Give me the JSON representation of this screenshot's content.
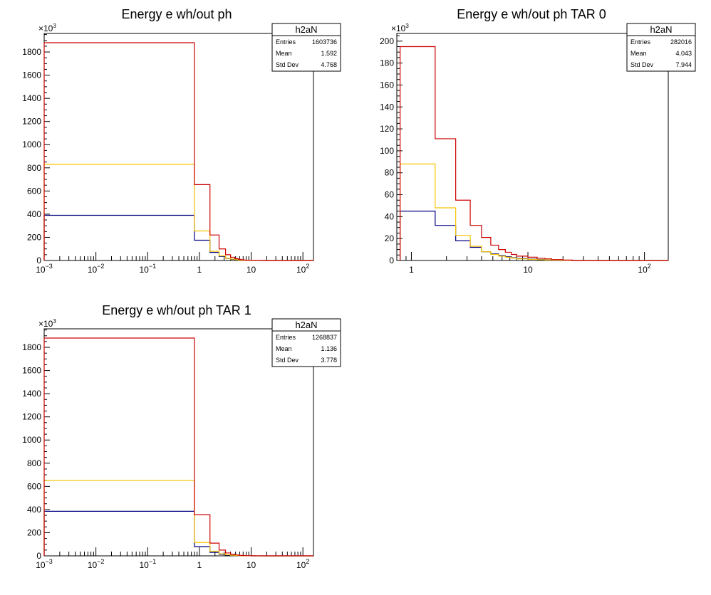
{
  "chart_data": [
    {
      "type": "step-histogram",
      "title": "Energy e wh/out ph",
      "x_scale": "log",
      "xlim": [
        0.001,
        160
      ],
      "ylim": [
        0,
        1960000
      ],
      "y_exponent_label": "×10",
      "y_exponent_power": "3",
      "y_ticks": [
        0,
        200,
        400,
        600,
        800,
        1000,
        1200,
        1400,
        1600,
        1800
      ],
      "x_ticks": [
        {
          "value": 0.001,
          "base": "10",
          "exp": "−3"
        },
        {
          "value": 0.01,
          "base": "10",
          "exp": "−2"
        },
        {
          "value": 0.1,
          "base": "10",
          "exp": "−1"
        },
        {
          "value": 1,
          "base": "1",
          "exp": ""
        },
        {
          "value": 10,
          "base": "10",
          "exp": ""
        },
        {
          "value": 100,
          "base": "10",
          "exp": "2"
        }
      ],
      "stats": {
        "name": "h2aN",
        "rows": [
          {
            "label": "Entries",
            "value": "1603736"
          },
          {
            "label": "Mean",
            "value": "1.592"
          },
          {
            "label": "Std Dev",
            "value": "4.768"
          }
        ]
      },
      "series": [
        {
          "color": "#cc0000",
          "edges": [
            0.001,
            0.8,
            1.6,
            2.4,
            3.2,
            4,
            4.8,
            5.6,
            6.4,
            7.2,
            8,
            10,
            12,
            14,
            16,
            160
          ],
          "values": [
            1880000,
            655000,
            220000,
            100000,
            50000,
            28000,
            16000,
            10000,
            6000,
            4000,
            2500,
            1500,
            1000,
            500,
            0
          ]
        },
        {
          "color": "#f5c400",
          "edges": [
            0.001,
            0.8,
            1.6,
            2.4,
            3.2,
            4,
            4.8,
            5.6,
            6.4,
            7.2,
            8,
            10,
            12,
            14,
            16,
            160
          ],
          "values": [
            830000,
            255000,
            80000,
            40000,
            20000,
            12000,
            7000,
            4000,
            2500,
            1500,
            1000,
            600,
            400,
            200,
            0
          ]
        },
        {
          "color": "#000080",
          "edges": [
            0.001,
            0.8,
            1.6,
            2.4,
            3.2,
            4,
            4.8,
            5.6,
            6.4,
            7.2,
            8,
            10,
            12,
            14,
            16,
            160
          ],
          "values": [
            390000,
            175000,
            70000,
            35000,
            18000,
            10000,
            6000,
            3500,
            2000,
            1200,
            800,
            500,
            300,
            150,
            0
          ]
        }
      ]
    },
    {
      "type": "step-histogram",
      "title": "Energy e wh/out ph TAR 0",
      "x_scale": "log",
      "xlim": [
        0.75,
        160
      ],
      "ylim": [
        0,
        207000
      ],
      "y_exponent_label": "×10",
      "y_exponent_power": "3",
      "y_ticks": [
        0,
        20,
        40,
        60,
        80,
        100,
        120,
        140,
        160,
        180,
        200
      ],
      "x_ticks": [
        {
          "value": 1,
          "base": "1",
          "exp": ""
        },
        {
          "value": 10,
          "base": "10",
          "exp": ""
        },
        {
          "value": 100,
          "base": "10",
          "exp": "2"
        }
      ],
      "stats": {
        "name": "h2aN",
        "rows": [
          {
            "label": "Entries",
            "value": "282016"
          },
          {
            "label": "Mean",
            "value": "4.043"
          },
          {
            "label": "Std Dev",
            "value": "7.944"
          }
        ]
      },
      "series": [
        {
          "color": "#cc0000",
          "edges": [
            0.8,
            1.6,
            2.4,
            3.2,
            4,
            4.8,
            5.6,
            6.4,
            7.2,
            8,
            10,
            12,
            14,
            16,
            20,
            24,
            160
          ],
          "values": [
            195000,
            111000,
            55000,
            32000,
            21000,
            14000,
            10000,
            7500,
            5500,
            4000,
            3000,
            2000,
            1500,
            800,
            400,
            0
          ]
        },
        {
          "color": "#f5c400",
          "edges": [
            0.8,
            1.6,
            2.4,
            3.2,
            4,
            4.8,
            5.6,
            6.4,
            7.2,
            8,
            10,
            12,
            14,
            16,
            20,
            24,
            160
          ],
          "values": [
            88000,
            48000,
            23000,
            13000,
            8000,
            5500,
            4000,
            3000,
            2200,
            1500,
            1000,
            700,
            500,
            300,
            150,
            0
          ]
        },
        {
          "color": "#000080",
          "edges": [
            0.8,
            1.6,
            2.4,
            3.2,
            4,
            4.8,
            5.6,
            6.4,
            7.2,
            8,
            10,
            12,
            14,
            16,
            20,
            24,
            160
          ],
          "values": [
            45000,
            32000,
            18000,
            12000,
            8000,
            6000,
            4500,
            3500,
            2500,
            1800,
            1200,
            800,
            500,
            300,
            150,
            0
          ]
        }
      ]
    },
    {
      "type": "step-histogram",
      "title": "Energy e wh/out ph TAR 1",
      "x_scale": "log",
      "xlim": [
        0.001,
        160
      ],
      "ylim": [
        0,
        1960000
      ],
      "y_exponent_label": "×10",
      "y_exponent_power": "3",
      "y_ticks": [
        0,
        200,
        400,
        600,
        800,
        1000,
        1200,
        1400,
        1600,
        1800
      ],
      "x_ticks": [
        {
          "value": 0.001,
          "base": "10",
          "exp": "−3"
        },
        {
          "value": 0.01,
          "base": "10",
          "exp": "−2"
        },
        {
          "value": 0.1,
          "base": "10",
          "exp": "−1"
        },
        {
          "value": 1,
          "base": "1",
          "exp": ""
        },
        {
          "value": 10,
          "base": "10",
          "exp": ""
        },
        {
          "value": 100,
          "base": "10",
          "exp": "2"
        }
      ],
      "stats": {
        "name": "h2aN",
        "rows": [
          {
            "label": "Entries",
            "value": "1268837"
          },
          {
            "label": "Mean",
            "value": "1.136"
          },
          {
            "label": "Std Dev",
            "value": "3.778"
          }
        ]
      },
      "series": [
        {
          "color": "#cc0000",
          "edges": [
            0.001,
            0.8,
            1.6,
            2.4,
            3.2,
            4,
            4.8,
            5.6,
            6.4,
            7.2,
            8,
            10,
            12,
            14,
            16,
            160
          ],
          "values": [
            1880000,
            355000,
            110000,
            50000,
            25000,
            14000,
            8000,
            5000,
            3000,
            2000,
            1200,
            800,
            500,
            250,
            0
          ]
        },
        {
          "color": "#f5c400",
          "edges": [
            0.001,
            0.8,
            1.6,
            2.4,
            3.2,
            4,
            4.8,
            5.6,
            6.4,
            7.2,
            8,
            10,
            12,
            14,
            16,
            160
          ],
          "values": [
            650000,
            115000,
            40000,
            18000,
            9000,
            5000,
            3000,
            1800,
            1000,
            600,
            400,
            250,
            150,
            80,
            0
          ]
        },
        {
          "color": "#000080",
          "edges": [
            0.001,
            0.8,
            1.6,
            2.4,
            3.2,
            4,
            4.8,
            5.6,
            6.4,
            7.2,
            8,
            10,
            12,
            14,
            16,
            160
          ],
          "values": [
            385000,
            80000,
            30000,
            14000,
            7000,
            4000,
            2500,
            1500,
            900,
            500,
            300,
            200,
            120,
            60,
            0
          ]
        }
      ]
    }
  ]
}
